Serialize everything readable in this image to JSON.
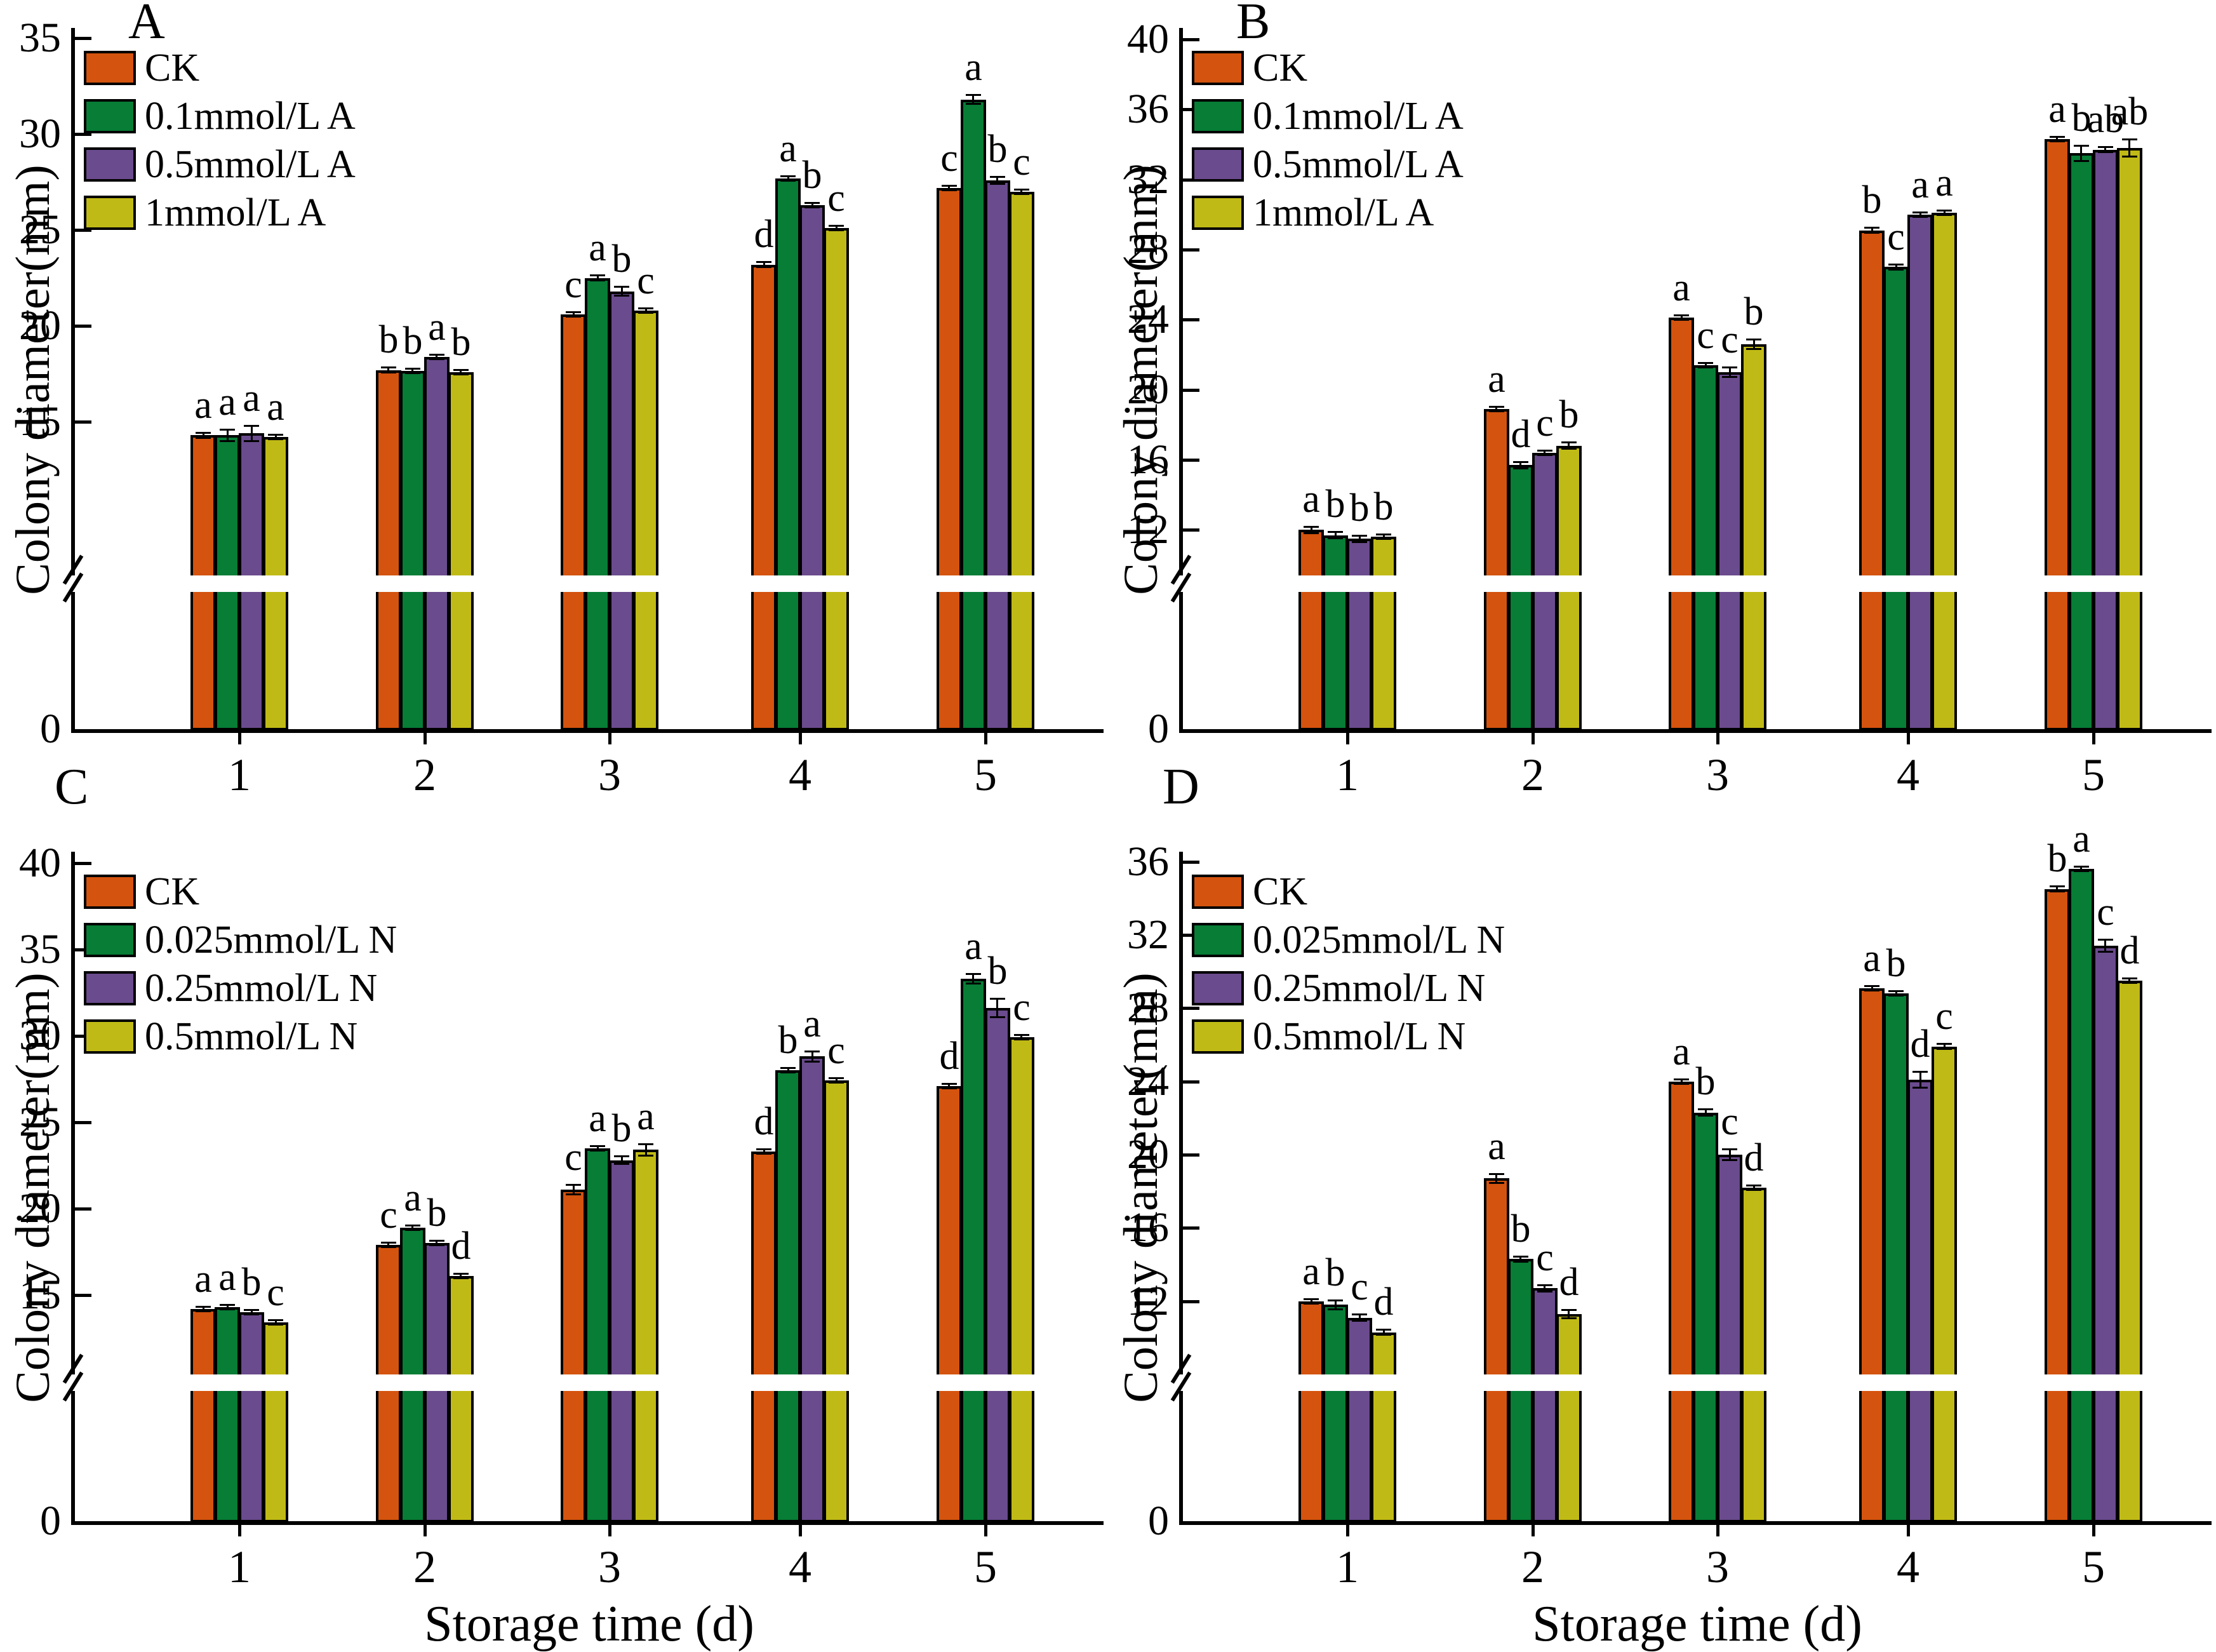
{
  "figure": {
    "description": "Four-panel grouped bar figure of colony diameter over storage time",
    "background": "#ffffff",
    "error_bar_color": "#000000",
    "bar_outline_color": "#000000"
  },
  "chart_data": [
    {
      "panel_label": "A",
      "type": "bar",
      "title": "",
      "ylabel": "Colony diameter(mm)",
      "xlabel": "",
      "categories": [
        "1",
        "2",
        "3",
        "4",
        "5"
      ],
      "yticks": [
        35,
        30,
        25,
        20,
        15
      ],
      "zero_label": "0",
      "ylim": [
        7.0,
        35.4
      ],
      "axis_break": true,
      "legend_position": "top-left",
      "grid": false,
      "series": [
        {
          "name": "CK",
          "color": "#d4530e",
          "values": [
            14.3,
            17.7,
            20.6,
            23.2,
            27.2
          ],
          "errors": [
            0.15,
            0.15,
            0.1,
            0.15,
            0.12
          ],
          "letters": [
            "a",
            "b",
            "c",
            "d",
            "c"
          ]
        },
        {
          "name": "0.1mmol/L A",
          "color": "#077d36",
          "values": [
            14.3,
            17.65,
            22.5,
            27.7,
            31.8
          ],
          "errors": [
            0.3,
            0.08,
            0.15,
            0.12,
            0.25
          ],
          "letters": [
            "a",
            "b",
            "a",
            "a",
            "a"
          ]
        },
        {
          "name": "0.5mmol/L A",
          "color": "#6a4b8d",
          "values": [
            14.4,
            18.4,
            21.8,
            26.3,
            27.6
          ],
          "errors": [
            0.4,
            0.08,
            0.25,
            0.12,
            0.2
          ],
          "letters": [
            "a",
            "a",
            "b",
            "b",
            "b"
          ]
        },
        {
          "name": "1mmol/L A",
          "color": "#c0ba16",
          "values": [
            14.2,
            17.6,
            20.8,
            25.1,
            27.0
          ],
          "errors": [
            0.08,
            0.1,
            0.1,
            0.1,
            0.1
          ],
          "letters": [
            "a",
            "b",
            "c",
            "c",
            "c"
          ]
        }
      ]
    },
    {
      "panel_label": "B",
      "type": "bar",
      "title": "",
      "ylabel": "Colony diameter(mm)",
      "xlabel": "",
      "categories": [
        "1",
        "2",
        "3",
        "4",
        "5"
      ],
      "yticks": [
        40,
        36,
        32,
        28,
        24,
        20,
        16,
        12
      ],
      "zero_label": "0",
      "ylim": [
        9.4,
        40.5
      ],
      "axis_break": true,
      "legend_position": "top-left",
      "grid": false,
      "series": [
        {
          "name": "CK",
          "color": "#d4530e",
          "values": [
            12.0,
            18.9,
            24.1,
            29.1,
            34.3
          ],
          "errors": [
            0.2,
            0.15,
            0.12,
            0.15,
            0.15
          ],
          "letters": [
            "a",
            "a",
            "a",
            "b",
            "a"
          ]
        },
        {
          "name": "0.1mmol/L A",
          "color": "#077d36",
          "values": [
            11.7,
            15.7,
            21.4,
            27.0,
            33.5
          ],
          "errors": [
            0.2,
            0.2,
            0.15,
            0.15,
            0.45
          ],
          "letters": [
            "b",
            "d",
            "c",
            "c",
            "b"
          ]
        },
        {
          "name": "0.5mmol/L A",
          "color": "#6a4b8d",
          "values": [
            11.5,
            16.4,
            21.0,
            30.0,
            33.7
          ],
          "errors": [
            0.2,
            0.12,
            0.3,
            0.15,
            0.15
          ],
          "letters": [
            "b",
            "c",
            "c",
            "a",
            "ab"
          ]
        },
        {
          "name": "1mmol/L A",
          "color": "#c0ba16",
          "values": [
            11.6,
            16.8,
            22.6,
            30.1,
            33.8
          ],
          "errors": [
            0.1,
            0.2,
            0.3,
            0.12,
            0.5
          ],
          "letters": [
            "b",
            "b",
            "b",
            "a",
            "ab"
          ]
        }
      ]
    },
    {
      "panel_label": "C",
      "type": "bar",
      "title": "",
      "ylabel": "Colony diameter(mm)",
      "xlabel": "Storage time (d)",
      "categories": [
        "1",
        "2",
        "3",
        "4",
        "5"
      ],
      "yticks": [
        40,
        35,
        30,
        25,
        20,
        15
      ],
      "zero_label": "0",
      "ylim": [
        10.4,
        40.5
      ],
      "axis_break": true,
      "legend_position": "top-left",
      "grid": false,
      "series": [
        {
          "name": "CK",
          "color": "#d4530e",
          "values": [
            14.2,
            17.9,
            21.1,
            23.3,
            27.1
          ],
          "errors": [
            0.1,
            0.08,
            0.3,
            0.12,
            0.1
          ],
          "letters": [
            "a",
            "c",
            "c",
            "d",
            "d"
          ]
        },
        {
          "name": "0.025mmol/L N",
          "color": "#077d36",
          "values": [
            14.3,
            18.9,
            23.5,
            28.0,
            33.3
          ],
          "errors": [
            0.12,
            0.1,
            0.1,
            0.15,
            0.3
          ],
          "letters": [
            "a",
            "a",
            "a",
            "b",
            "a"
          ]
        },
        {
          "name": "0.25mmol/L N",
          "color": "#6a4b8d",
          "values": [
            14.0,
            18.0,
            22.8,
            28.8,
            31.6
          ],
          "errors": [
            0.08,
            0.15,
            0.25,
            0.3,
            0.55
          ],
          "letters": [
            "b",
            "b",
            "b",
            "a",
            "b"
          ]
        },
        {
          "name": "0.5mmol/L N",
          "color": "#c0ba16",
          "values": [
            13.4,
            16.1,
            23.4,
            27.4,
            29.9
          ],
          "errors": [
            0.1,
            0.08,
            0.35,
            0.1,
            0.1
          ],
          "letters": [
            "c",
            "d",
            "a",
            "c",
            "c"
          ]
        }
      ]
    },
    {
      "panel_label": "D",
      "type": "bar",
      "title": "",
      "ylabel": "Colony diameter(mm)",
      "xlabel": "Storage time (d)",
      "categories": [
        "1",
        "2",
        "3",
        "4",
        "5"
      ],
      "yticks": [
        36,
        32,
        28,
        24,
        20,
        16,
        12
      ],
      "zero_label": "0",
      "ylim": [
        8.0,
        36.4
      ],
      "axis_break": true,
      "legend_position": "top-left",
      "grid": false,
      "series": [
        {
          "name": "CK",
          "color": "#d4530e",
          "values": [
            12.0,
            18.7,
            24.0,
            29.1,
            34.5
          ],
          "errors": [
            0.1,
            0.25,
            0.12,
            0.1,
            0.15
          ],
          "letters": [
            "a",
            "a",
            "a",
            "a",
            "b"
          ]
        },
        {
          "name": "0.025mmol/L N",
          "color": "#077d36",
          "values": [
            11.8,
            14.3,
            22.3,
            28.8,
            35.6
          ],
          "errors": [
            0.25,
            0.15,
            0.2,
            0.1,
            0.12
          ],
          "letters": [
            "b",
            "b",
            "b",
            "b",
            "a"
          ]
        },
        {
          "name": "0.25mmol/L N",
          "color": "#6a4b8d",
          "values": [
            11.1,
            12.7,
            20.0,
            24.1,
            31.4
          ],
          "errors": [
            0.2,
            0.2,
            0.3,
            0.45,
            0.35
          ],
          "letters": [
            "c",
            "c",
            "c",
            "d",
            "c"
          ]
        },
        {
          "name": "0.5mmol/L N",
          "color": "#c0ba16",
          "values": [
            10.3,
            11.3,
            18.2,
            25.9,
            29.5
          ],
          "errors": [
            0.15,
            0.25,
            0.12,
            0.15,
            0.15
          ],
          "letters": [
            "d",
            "d",
            "d",
            "c",
            "d"
          ]
        }
      ]
    }
  ]
}
